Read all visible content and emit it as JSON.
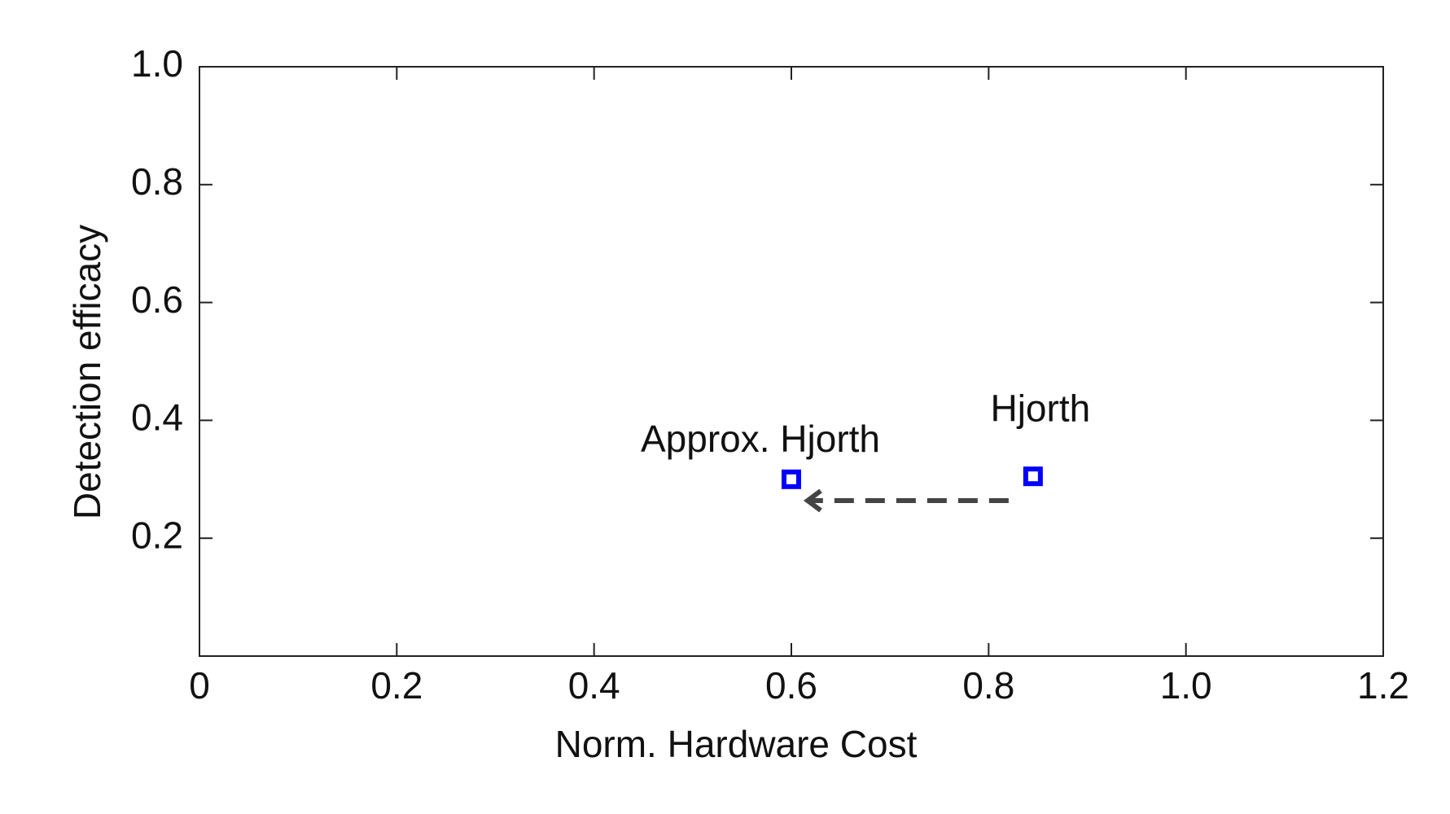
{
  "chart_data": {
    "type": "scatter",
    "x_label": "Norm. Hardware Cost",
    "y_label": "Detection efficacy",
    "labels": [
      "Approx. Hjorth",
      "Hjorth"
    ],
    "x": [
      0.6,
      0.845
    ],
    "values": [
      0.3,
      0.305
    ],
    "color": "#0000ff",
    "xlim": [
      0,
      1.2
    ],
    "xticks": [
      0,
      0.2,
      0.4,
      0.6,
      0.8,
      {
        "value": 1,
        "label": "1.0"
      },
      1.2
    ],
    "ylim": [
      0,
      1
    ],
    "yticks": [
      0.2,
      0.4,
      0.6,
      0.8,
      {
        "value": 1,
        "label": "1.0"
      }
    ]
  }
}
